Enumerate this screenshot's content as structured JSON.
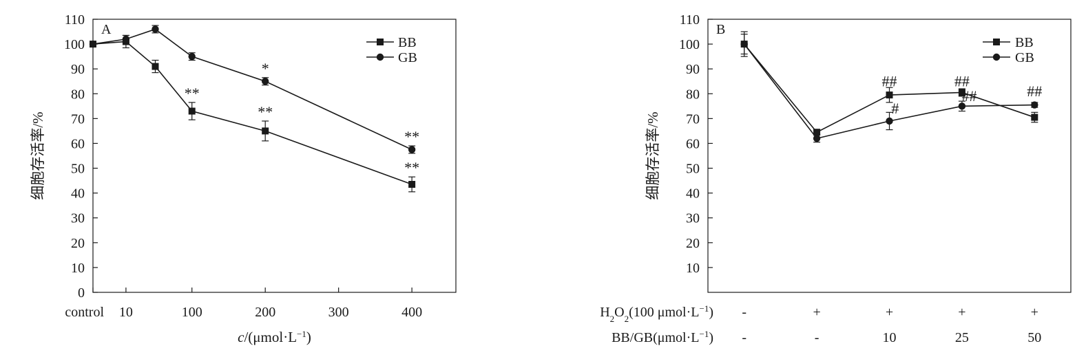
{
  "chart_data": [
    {
      "type": "line",
      "panel_label": "A",
      "ylabel": "细胞存活率/%",
      "xlabel_italic": "c",
      "xlabel_rest": "/(μmol·L",
      "xlabel_sup": "−1",
      "xlabel_close": ")",
      "ylim": [
        0,
        110
      ],
      "yticks": [
        0,
        10,
        20,
        30,
        40,
        50,
        60,
        70,
        80,
        90,
        100,
        110
      ],
      "xlim": [
        -35,
        460
      ],
      "xticks": [
        {
          "x": -35,
          "label": "control"
        },
        {
          "x": 10,
          "label": "10"
        },
        {
          "x": 100,
          "label": "100"
        },
        {
          "x": 200,
          "label": "200"
        },
        {
          "x": 300,
          "label": "300"
        },
        {
          "x": 400,
          "label": "400"
        }
      ],
      "legend_position": "top-right",
      "series": [
        {
          "name": "BB",
          "marker": "square",
          "x": [
            -35,
            10,
            50,
            100,
            200,
            400
          ],
          "y": [
            100,
            101,
            91,
            73,
            65,
            43.5
          ],
          "err": [
            1,
            2.5,
            2.5,
            3.5,
            4,
            3
          ]
        },
        {
          "name": "GB",
          "marker": "circle",
          "x": [
            -35,
            10,
            50,
            100,
            200,
            400
          ],
          "y": [
            100,
            102,
            106,
            95,
            85,
            57.5
          ],
          "err": [
            1,
            1.5,
            1.5,
            1.5,
            1.5,
            1.5
          ]
        }
      ],
      "annotations": [
        {
          "text": "*",
          "series": 1,
          "index": 4
        },
        {
          "text": "**",
          "series": 0,
          "index": 3
        },
        {
          "text": "**",
          "series": 0,
          "index": 4
        },
        {
          "text": "**",
          "series": 1,
          "index": 5
        },
        {
          "text": "**",
          "series": 0,
          "index": 5
        }
      ]
    },
    {
      "type": "line",
      "panel_label": "B",
      "ylabel": "细胞存活率/%",
      "ylim": [
        0,
        110
      ],
      "yticks": [
        10,
        20,
        30,
        40,
        50,
        60,
        70,
        80,
        90,
        100,
        110
      ],
      "xlim": [
        -0.5,
        4.5
      ],
      "legend_position": "top-right",
      "rows": [
        {
          "label_pre": "H",
          "label_sub": "2",
          "label_mid": "O",
          "label_sub2": "2",
          "label_post": "(100 μmol·L",
          "label_sup": "−1",
          "label_close": ")",
          "values": [
            "-",
            "+",
            "+",
            "+",
            "+"
          ]
        },
        {
          "label_pre": "BB/GB(μmol·L",
          "label_sup": "−1",
          "label_close": ")",
          "values": [
            "-",
            "-",
            "10",
            "25",
            "50"
          ]
        }
      ],
      "series": [
        {
          "name": "BB",
          "marker": "square",
          "x": [
            0,
            1,
            2,
            3,
            4
          ],
          "y": [
            100,
            64.5,
            79.5,
            80.5,
            70.5
          ],
          "err": [
            5,
            1,
            3,
            1.5,
            2
          ]
        },
        {
          "name": "GB",
          "marker": "circle",
          "x": [
            0,
            1,
            2,
            3,
            4
          ],
          "y": [
            100,
            62,
            69,
            75,
            75.5
          ],
          "err": [
            4,
            1.5,
            3.5,
            2,
            1
          ]
        }
      ],
      "annotations": [
        {
          "text": "##",
          "x": 2,
          "y": 83
        },
        {
          "text": "#",
          "x": 2.08,
          "y": 72
        },
        {
          "text": "##",
          "x": 3,
          "y": 83
        },
        {
          "text": "##",
          "x": 3.1,
          "y": 77
        },
        {
          "text": "##",
          "x": 4,
          "y": 79
        }
      ]
    }
  ]
}
